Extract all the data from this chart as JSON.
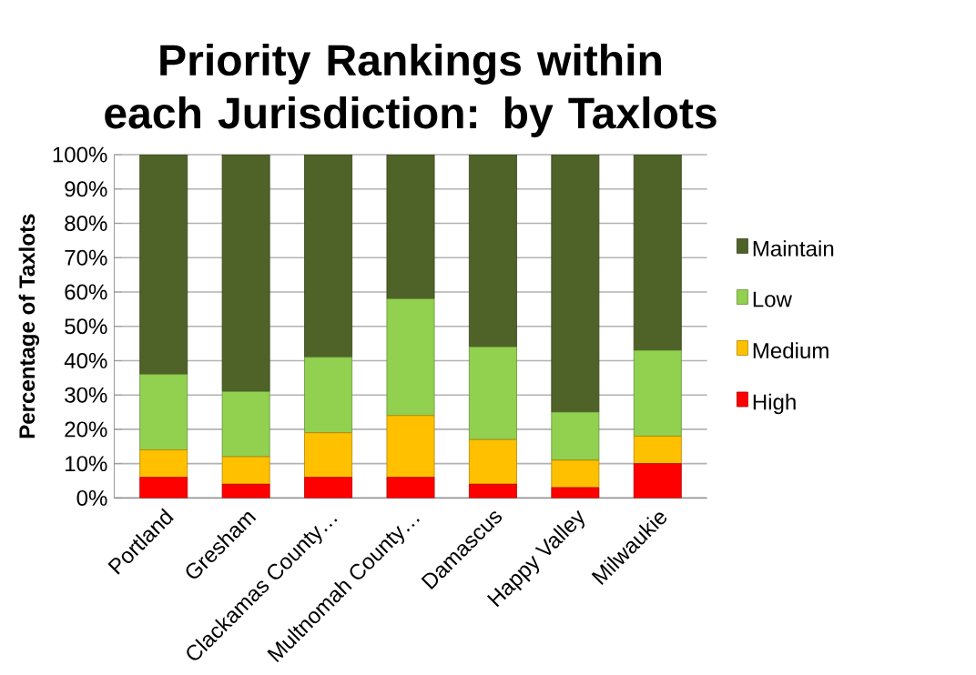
{
  "chart_data": {
    "type": "bar",
    "stacked": true,
    "title": "Priority Rankings within each Jurisdiction: by Taxlots",
    "ylabel": "Percentage of Taxlots",
    "categories": [
      "Portland",
      "Gresham",
      "Clackamas County…",
      "Multnomah County…",
      "Damascus",
      "Happy Valley",
      "Milwaukie"
    ],
    "series": [
      {
        "name": "High",
        "color": "#ff0000",
        "values": [
          6,
          4,
          6,
          6,
          4,
          3,
          10
        ]
      },
      {
        "name": "Medium",
        "color": "#ffc000",
        "values": [
          8,
          8,
          13,
          18,
          13,
          8,
          8
        ]
      },
      {
        "name": "Low",
        "color": "#92d050",
        "values": [
          22,
          19,
          22,
          34,
          27,
          14,
          25
        ]
      },
      {
        "name": "Maintain",
        "color": "#4f6228",
        "values": [
          64,
          69,
          59,
          42,
          56,
          75,
          57
        ]
      }
    ],
    "ylim": [
      0,
      100
    ],
    "yticks": [
      {
        "value": 0,
        "label": "0%"
      },
      {
        "value": 10,
        "label": "10%"
      },
      {
        "value": 20,
        "label": "20%"
      },
      {
        "value": 30,
        "label": "30%"
      },
      {
        "value": 40,
        "label": "40%"
      },
      {
        "value": 50,
        "label": "50%"
      },
      {
        "value": 60,
        "label": "60%"
      },
      {
        "value": 70,
        "label": "70%"
      },
      {
        "value": 80,
        "label": "80%"
      },
      {
        "value": 90,
        "label": "90%"
      },
      {
        "value": 100,
        "label": "100%"
      }
    ],
    "grid": "y",
    "legend": "right"
  }
}
